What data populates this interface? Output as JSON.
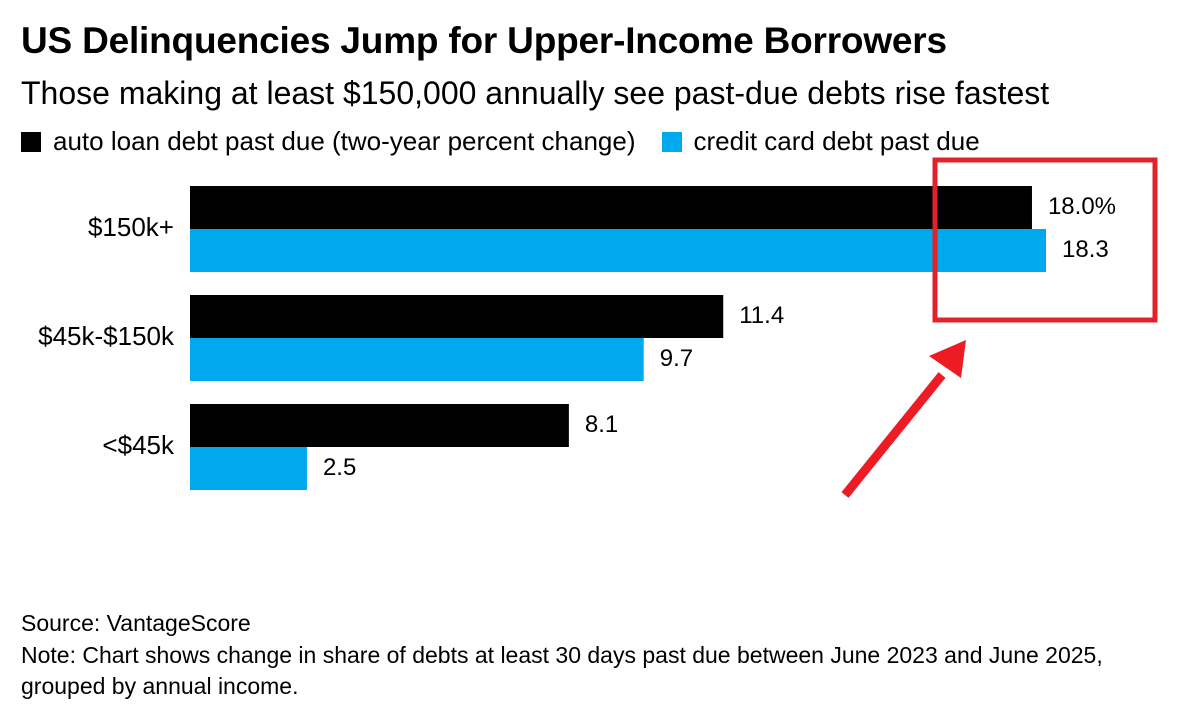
{
  "header": {
    "title": "US Delinquencies Jump for Upper-Income Borrowers",
    "subtitle": "Those making at least $150,000 annually see past-due debts rise fastest"
  },
  "chart_data": {
    "type": "bar",
    "orientation": "horizontal",
    "title": "US Delinquencies Jump for Upper-Income Borrowers",
    "subtitle": "Those making at least $150,000 annually see past-due debts rise fastest",
    "xlabel": "",
    "ylabel": "",
    "categories": [
      "$150k+",
      "$45k-$150k",
      "<$45k"
    ],
    "series": [
      {
        "name": "auto loan debt past due (two-year percent change)",
        "color": "#000000",
        "values": [
          18.0,
          11.4,
          8.1
        ],
        "labels": [
          "18.0%",
          "11.4",
          "8.1"
        ]
      },
      {
        "name": "credit card debt past due",
        "color": "#00a8ee",
        "values": [
          18.3,
          9.7,
          2.5
        ],
        "labels": [
          "18.3",
          "9.7",
          "2.5"
        ]
      }
    ],
    "xlim": [
      0,
      18.3
    ],
    "grid": false,
    "legend_position": "top-left"
  },
  "annotation": {
    "highlight_color": "#e0232b",
    "arrow_color": "#ed1c24"
  },
  "footer": {
    "source": "Source: VantageScore",
    "note": "Note: Chart shows change in share of debts at least 30 days past due between June 2023 and June 2025, grouped by annual income."
  }
}
